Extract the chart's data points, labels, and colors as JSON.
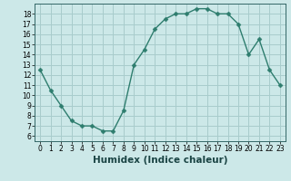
{
  "x": [
    0,
    1,
    2,
    3,
    4,
    5,
    6,
    7,
    8,
    9,
    10,
    11,
    12,
    13,
    14,
    15,
    16,
    17,
    18,
    19,
    20,
    21,
    22,
    23
  ],
  "y": [
    12.5,
    10.5,
    9.0,
    7.5,
    7.0,
    7.0,
    6.5,
    6.5,
    8.5,
    13.0,
    14.5,
    16.5,
    17.5,
    18.0,
    18.0,
    18.5,
    18.5,
    18.0,
    18.0,
    17.0,
    14.0,
    15.5,
    12.5,
    11.0
  ],
  "line_color": "#2e7d6e",
  "marker": "D",
  "marker_size": 2.5,
  "bg_color": "#cce8e8",
  "grid_color": "#a8cccc",
  "xlabel": "Humidex (Indice chaleur)",
  "xlim": [
    -0.5,
    23.5
  ],
  "ylim": [
    5.5,
    19.0
  ],
  "yticks": [
    6,
    7,
    8,
    9,
    10,
    11,
    12,
    13,
    14,
    15,
    16,
    17,
    18
  ],
  "xticks": [
    0,
    1,
    2,
    3,
    4,
    5,
    6,
    7,
    8,
    9,
    10,
    11,
    12,
    13,
    14,
    15,
    16,
    17,
    18,
    19,
    20,
    21,
    22,
    23
  ],
  "tick_fontsize": 5.5,
  "label_fontsize": 7.5
}
